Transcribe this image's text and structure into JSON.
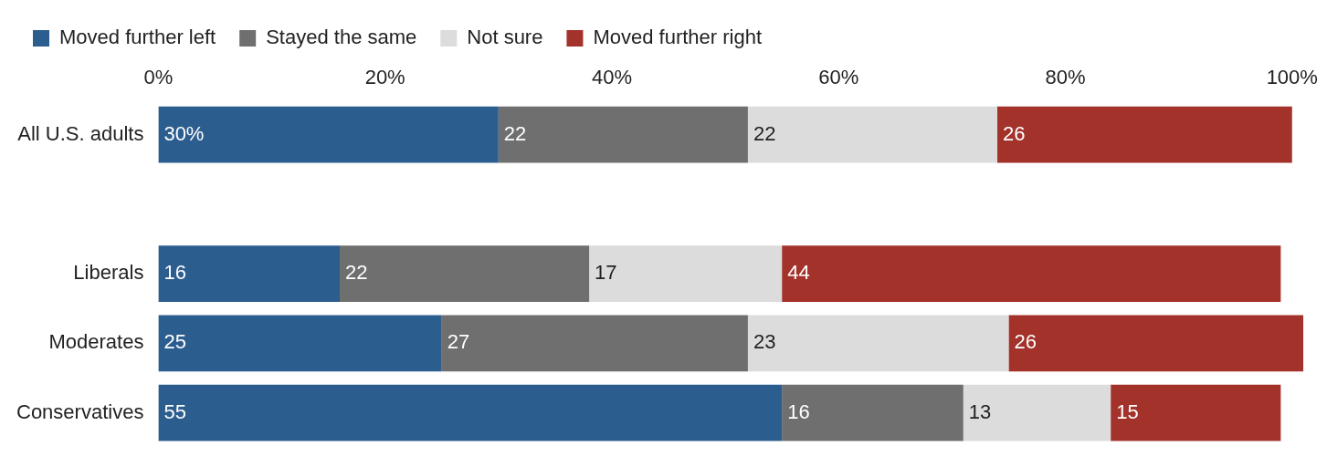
{
  "chart_data": {
    "type": "bar",
    "orientation": "horizontal",
    "stacked": true,
    "legend": "top left",
    "grid": false,
    "categories": [
      "All U.S. adults",
      null,
      "Liberals",
      "Moderates",
      "Conservatives"
    ],
    "xlim": [
      0,
      101
    ],
    "xticks": [
      {
        "value": 0,
        "label": "0%"
      },
      {
        "value": 20,
        "label": "20%"
      },
      {
        "value": 40,
        "label": "40%"
      },
      {
        "value": 60,
        "label": "60%"
      },
      {
        "value": 80,
        "label": "80%"
      },
      {
        "value": 100,
        "label": "100%"
      }
    ],
    "series": [
      {
        "name": "Moved further left",
        "color": "#2c5d8f",
        "values": [
          30,
          null,
          16,
          25,
          55
        ],
        "value_labels": [
          "30%",
          null,
          "16",
          "25",
          "55"
        ]
      },
      {
        "name": "Stayed the same",
        "color": "#6f6f6f",
        "values": [
          22,
          null,
          22,
          27,
          16
        ],
        "value_labels": [
          "22",
          null,
          "22",
          "27",
          "16"
        ]
      },
      {
        "name": "Not sure",
        "color": "#dcdcdc",
        "values": [
          22,
          null,
          17,
          23,
          13
        ],
        "value_labels": [
          "22",
          null,
          "17",
          "23",
          "13"
        ]
      },
      {
        "name": "Moved further right",
        "color": "#a3322b",
        "values": [
          26,
          null,
          44,
          26,
          15
        ],
        "value_labels": [
          "26",
          null,
          "44",
          "26",
          "15"
        ]
      }
    ]
  }
}
